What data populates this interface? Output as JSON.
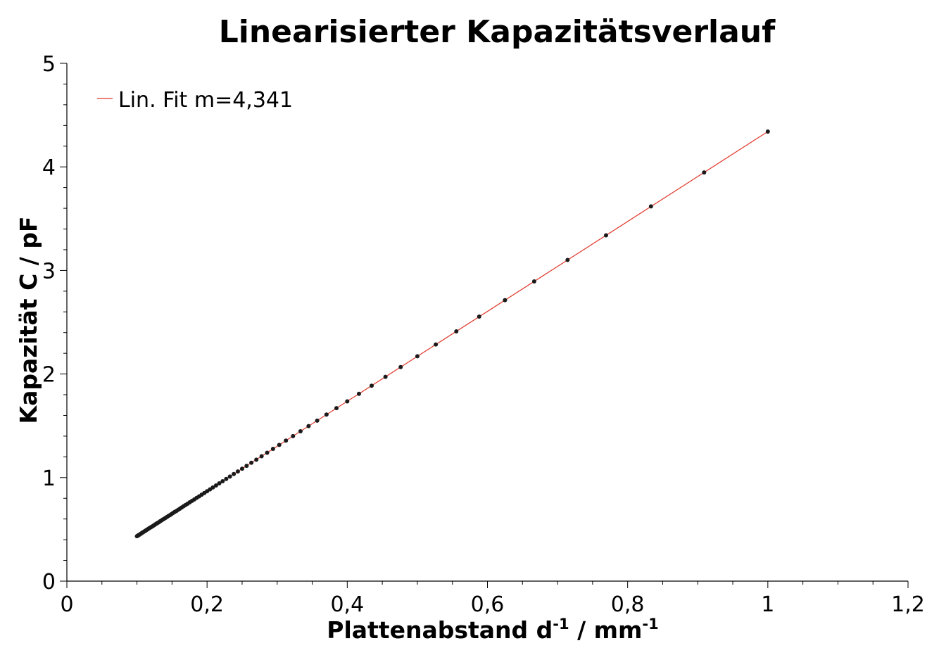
{
  "chart_data": {
    "type": "scatter",
    "title": "Linearisierter Kapazitätsverlauf",
    "xlabel": {
      "base": "Plattenabstand d",
      "base_sup": "-1",
      "unit": " / mm",
      "unit_sup": "-1"
    },
    "ylabel": "Kapazität C / pF",
    "xlim": [
      0,
      1.2
    ],
    "ylim": [
      0,
      5
    ],
    "x_ticks": [
      0,
      0.2,
      0.4,
      0.6,
      0.8,
      1.0,
      1.2
    ],
    "x_tick_labels": [
      "0",
      "0,2",
      "0,4",
      "0,6",
      "0,8",
      "1",
      "1,2"
    ],
    "y_ticks": [
      0,
      1,
      2,
      3,
      4,
      5
    ],
    "y_tick_labels": [
      "0",
      "1",
      "2",
      "3",
      "4",
      "5"
    ],
    "grid": false,
    "legend_position": "top-left",
    "series": [
      {
        "name": "Lin. Fit m=4,341",
        "kind": "line",
        "color": "#e0392b",
        "x": [
          0.1,
          1.0
        ],
        "y": [
          0.4341,
          4.341
        ]
      },
      {
        "kind": "points",
        "color": "#1a1a1a",
        "x": [
          1.0,
          0.9091,
          0.8333,
          0.7692,
          0.7143,
          0.6667,
          0.625,
          0.5882,
          0.5556,
          0.5263,
          0.5,
          0.4762,
          0.4545,
          0.4348,
          0.4167,
          0.4,
          0.3846,
          0.3704,
          0.3571,
          0.3448,
          0.3333,
          0.3226,
          0.3125,
          0.303,
          0.2941,
          0.2857,
          0.2778,
          0.2703,
          0.2632,
          0.2564,
          0.25,
          0.2439,
          0.2381,
          0.2326,
          0.2273,
          0.2222,
          0.2174,
          0.2128,
          0.2083,
          0.2041,
          0.2,
          0.1961,
          0.1923,
          0.1887,
          0.1852,
          0.1818,
          0.1786,
          0.1754,
          0.1724,
          0.1695,
          0.1667,
          0.1639,
          0.1613,
          0.1587,
          0.1563,
          0.1538,
          0.1515,
          0.1493,
          0.1471,
          0.1449,
          0.1429,
          0.1408,
          0.1389,
          0.137,
          0.1351,
          0.1333,
          0.1316,
          0.1299,
          0.1282,
          0.1266,
          0.125,
          0.1235,
          0.122,
          0.1205,
          0.119,
          0.1176,
          0.1163,
          0.1149,
          0.1136,
          0.1124,
          0.1111,
          0.1099,
          0.1087,
          0.1075,
          0.1064,
          0.1053,
          0.1042,
          0.1031,
          0.102,
          0.101,
          0.1
        ],
        "y": [
          4.341,
          3.946,
          3.618,
          3.339,
          3.101,
          2.894,
          2.713,
          2.554,
          2.412,
          2.285,
          2.171,
          2.067,
          1.973,
          1.887,
          1.809,
          1.736,
          1.67,
          1.608,
          1.55,
          1.497,
          1.447,
          1.4,
          1.357,
          1.315,
          1.277,
          1.24,
          1.206,
          1.173,
          1.143,
          1.113,
          1.085,
          1.059,
          1.034,
          1.01,
          0.987,
          0.965,
          0.944,
          0.924,
          0.904,
          0.886,
          0.868,
          0.851,
          0.835,
          0.819,
          0.804,
          0.789,
          0.775,
          0.762,
          0.748,
          0.736,
          0.724,
          0.712,
          0.7,
          0.689,
          0.678,
          0.668,
          0.658,
          0.648,
          0.638,
          0.629,
          0.62,
          0.611,
          0.603,
          0.595,
          0.587,
          0.579,
          0.571,
          0.564,
          0.557,
          0.55,
          0.543,
          0.536,
          0.529,
          0.523,
          0.517,
          0.511,
          0.505,
          0.499,
          0.493,
          0.488,
          0.482,
          0.477,
          0.472,
          0.467,
          0.462,
          0.457,
          0.452,
          0.447,
          0.443,
          0.438,
          0.434
        ]
      }
    ]
  }
}
